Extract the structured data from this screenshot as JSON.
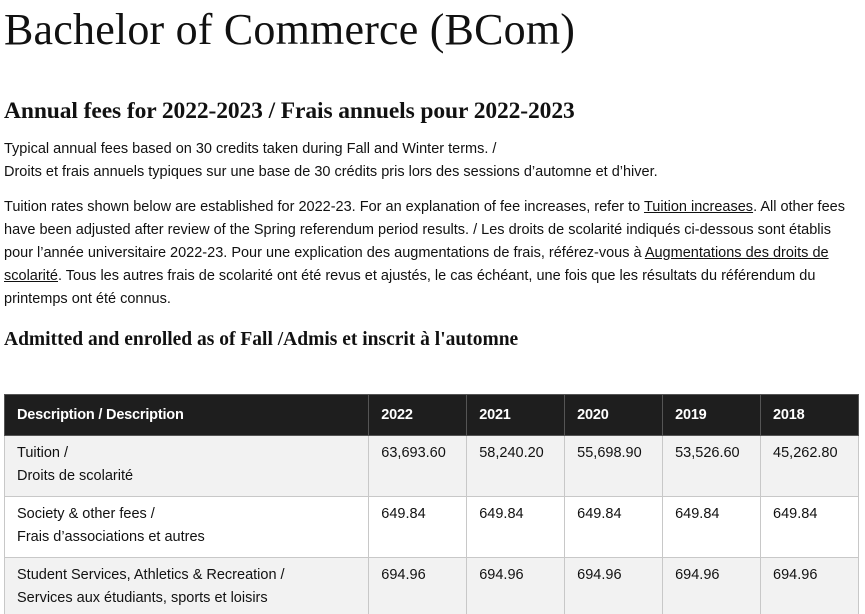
{
  "page": {
    "title": "Bachelor of Commerce (BCom)",
    "subtitle": "Annual fees for 2022-2023 / Frais annuels pour 2022-2023",
    "intro_line1": "Typical annual fees based on 30 credits taken during Fall and Winter terms. /",
    "intro_line2": "Droits et frais annuels typiques sur une base de 30 crédits pris lors des sessions d’automne et d’hiver.",
    "para_part1": "Tuition rates shown below are established for 2022-23. For an explanation of fee increases, refer to ",
    "link1": "Tuition increases",
    "para_part2": ". All other fees have been adjusted after review of the Spring referendum period results. / Les droits de scolarité indiqués ci-dessous sont établis pour l’année universitaire 2022-23. Pour une explication des augmentations de frais, référez-vous à ",
    "link2": "Augmentations des droits de scolarité",
    "para_part3": ". Tous les autres frais de scolarité ont été revus et ajustés, le cas échéant, une fois que les résultats du référendum du printemps ont été connus.",
    "section_heading": "Admitted and enrolled as of Fall /Admis et inscrit à l'automne"
  },
  "table": {
    "headers": [
      "Description / Description",
      "2022",
      "2021",
      "2020",
      "2019",
      "2018"
    ],
    "rows": [
      {
        "desc_en": "Tuition /",
        "desc_fr": "Droits de scolarité",
        "values": [
          "63,693.60",
          "58,240.20",
          "55,698.90",
          "53,526.60",
          "45,262.80"
        ]
      },
      {
        "desc_en": "Society & other fees /",
        "desc_fr": "Frais d’associations et autres",
        "values": [
          "649.84",
          "649.84",
          "649.84",
          "649.84",
          "649.84"
        ]
      },
      {
        "desc_en": "Student Services, Athletics & Recreation /",
        "desc_fr": "Services aux étudiants, sports et loisirs",
        "values": [
          "694.96",
          "694.96",
          "694.96",
          "694.96",
          "694.96"
        ]
      }
    ]
  }
}
